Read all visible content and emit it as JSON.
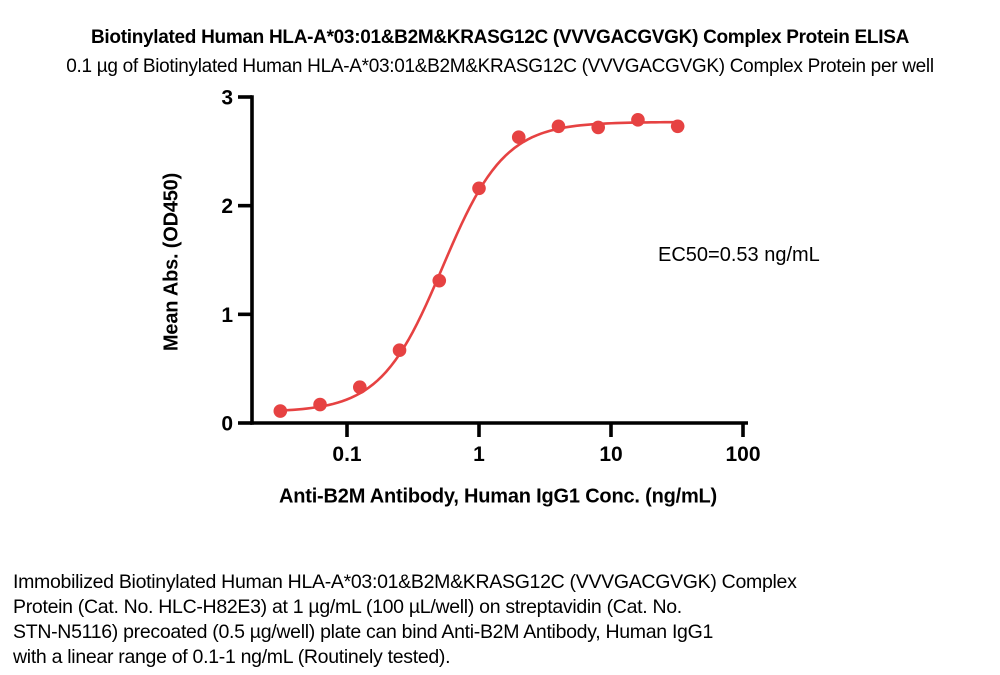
{
  "header": {
    "title": "Biotinylated Human HLA-A*03:01&B2M&KRASG12C (VVVGACGVGK) Complex Protein ELISA",
    "subtitle": "0.1 µg of Biotinylated Human HLA-A*03:01&B2M&KRASG12C (VVVGACGVGK) Complex Protein per well"
  },
  "chart_data": {
    "type": "scatter",
    "title": "",
    "xlabel": "Anti-B2M Antibody, Human IgG1 Conc. (ng/mL)",
    "ylabel": "Mean Abs. (OD450)",
    "x_scale": "log10",
    "xlim": [
      0.019,
      100
    ],
    "ylim": [
      0,
      3
    ],
    "grid": false,
    "legend": "none",
    "x_ticks": [
      0.1,
      1,
      10,
      100
    ],
    "x_tick_labels": [
      "0.1",
      "1",
      "10",
      "100"
    ],
    "y_ticks": [
      0,
      1,
      2,
      3
    ],
    "y_tick_labels": [
      "0",
      "1",
      "2",
      "3"
    ],
    "points": {
      "x": [
        0.03125,
        0.0625,
        0.125,
        0.25,
        0.5,
        1,
        2,
        4,
        8,
        16,
        32
      ],
      "y": [
        0.11,
        0.17,
        0.33,
        0.67,
        1.31,
        2.16,
        2.63,
        2.73,
        2.72,
        2.79,
        2.73
      ]
    },
    "fit_curve": {
      "model": "4PL",
      "bottom": 0.1,
      "top": 2.77,
      "ec50": 0.53,
      "hill": 1.85
    },
    "annotation": "EC50=0.53 ng/mL",
    "colors": {
      "series": "#e64242",
      "axis": "#000000",
      "text": "#000000"
    }
  },
  "footer": {
    "lines": [
      "Immobilized Biotinylated Human HLA-A*03:01&B2M&KRASG12C (VVVGACGVGK) Complex",
      "Protein (Cat. No. HLC-H82E3) at 1 µg/mL (100 µL/well) on streptavidin (Cat. No.",
      "STN-N5116) precoated (0.5 µg/well) plate can bind Anti-B2M Antibody, Human IgG1",
      "with a linear range of 0.1-1 ng/mL (Routinely tested)."
    ]
  }
}
